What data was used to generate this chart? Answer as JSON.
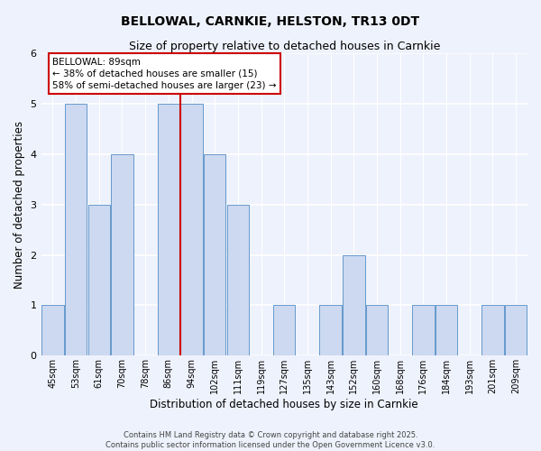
{
  "title": "BELLOWAL, CARNKIE, HELSTON, TR13 0DT",
  "subtitle": "Size of property relative to detached houses in Carnkie",
  "xlabel": "Distribution of detached houses by size in Carnkie",
  "ylabel": "Number of detached properties",
  "bar_labels": [
    "45sqm",
    "53sqm",
    "61sqm",
    "70sqm",
    "78sqm",
    "86sqm",
    "94sqm",
    "102sqm",
    "111sqm",
    "119sqm",
    "127sqm",
    "135sqm",
    "143sqm",
    "152sqm",
    "160sqm",
    "168sqm",
    "176sqm",
    "184sqm",
    "193sqm",
    "201sqm",
    "209sqm"
  ],
  "bar_values": [
    1,
    5,
    3,
    4,
    0,
    5,
    5,
    4,
    3,
    0,
    1,
    0,
    1,
    2,
    1,
    0,
    1,
    1,
    0,
    1,
    1
  ],
  "bar_color": "#ccd9f0",
  "bar_edge_color": "#6699cc",
  "property_label": "BELLOWAL: 89sqm",
  "annotation_line1": "← 38% of detached houses are smaller (15)",
  "annotation_line2": "58% of semi-detached houses are larger (23) →",
  "vline_color": "#cc0000",
  "vline_x_index": 5.5,
  "ylim": [
    0,
    6
  ],
  "yticks": [
    0,
    1,
    2,
    3,
    4,
    5,
    6
  ],
  "background_color": "#eef2fc",
  "grid_color": "#ffffff",
  "footer_line1": "Contains HM Land Registry data © Crown copyright and database right 2025.",
  "footer_line2": "Contains public sector information licensed under the Open Government Licence v3.0.",
  "title_fontsize": 10,
  "subtitle_fontsize": 9,
  "axis_label_fontsize": 8.5,
  "tick_fontsize": 7,
  "annotation_fontsize": 7.5,
  "footer_fontsize": 6
}
